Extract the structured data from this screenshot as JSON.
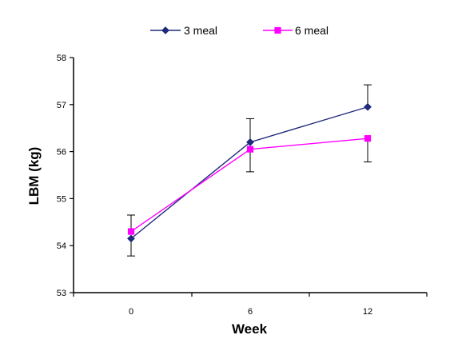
{
  "chart_data": {
    "type": "line",
    "title": "",
    "xlabel": "Week",
    "ylabel": "LBM (kg)",
    "categories": [
      "0",
      "6",
      "12"
    ],
    "ylim": [
      53,
      58
    ],
    "yticks": [
      "53",
      "54",
      "55",
      "56",
      "57",
      "58"
    ],
    "grid": false,
    "legend_position": "top-center",
    "series": [
      {
        "name": "3 meal",
        "values": [
          54.15,
          56.2,
          56.95
        ],
        "error_upper": [
          null,
          56.7,
          57.42
        ],
        "error_lower": [
          53.78,
          null,
          null
        ],
        "color": "#1f2a7a",
        "marker": "diamond"
      },
      {
        "name": "6 meal",
        "values": [
          54.3,
          56.05,
          56.28
        ],
        "error_upper": [
          54.65,
          null,
          null
        ],
        "error_lower": [
          null,
          55.57,
          55.78
        ],
        "color": "#ff00ff",
        "marker": "square"
      }
    ]
  }
}
